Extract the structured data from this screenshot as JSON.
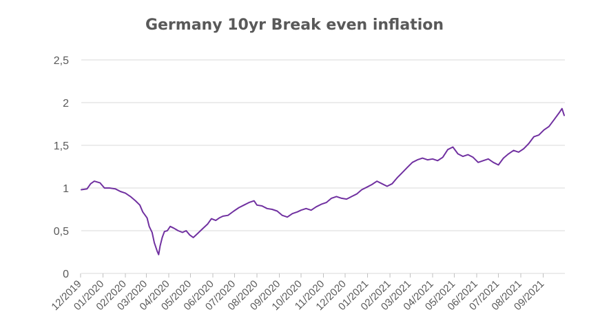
{
  "chart_data": {
    "type": "line",
    "title": "Germany 10yr Break even inflation",
    "xlabel": "",
    "ylabel": "",
    "ylim": [
      0,
      2.5
    ],
    "yticks": [
      0,
      0.5,
      1,
      1.5,
      2,
      2.5
    ],
    "ytick_labels": [
      "0",
      "0,5",
      "1",
      "1,5",
      "2",
      "2,5"
    ],
    "xlim": [
      "2019-12-02",
      "2021-10-01"
    ],
    "xtick_dates": [
      "2019-12-01",
      "2020-01-01",
      "2020-02-01",
      "2020-03-01",
      "2020-04-01",
      "2020-05-01",
      "2020-06-01",
      "2020-07-01",
      "2020-08-01",
      "2020-09-01",
      "2020-10-01",
      "2020-11-01",
      "2020-12-01",
      "2021-01-01",
      "2021-02-01",
      "2021-03-01",
      "2021-04-01",
      "2021-05-01",
      "2021-06-01",
      "2021-07-01",
      "2021-08-01",
      "2021-09-01"
    ],
    "xtick_labels": [
      "12/2019",
      "01/2020",
      "02/2020",
      "03/2020",
      "04/2020",
      "05/2020",
      "06/2020",
      "07/2020",
      "08/2020",
      "09/2020",
      "10/2020",
      "11/2020",
      "12/2020",
      "01/2021",
      "02/2021",
      "03/2021",
      "04/2021",
      "05/2021",
      "06/2021",
      "07/2021",
      "08/2021",
      "09/2021"
    ],
    "grid": true,
    "legend": "none",
    "line_color": "#7030a0",
    "series": [
      {
        "x": [
          "2019-12-02",
          "2019-12-10",
          "2019-12-15",
          "2019-12-20",
          "2019-12-28",
          "2020-01-03",
          "2020-01-10",
          "2020-01-18",
          "2020-01-25",
          "2020-02-01",
          "2020-02-08",
          "2020-02-15",
          "2020-02-21",
          "2020-02-25",
          "2020-03-02",
          "2020-03-05",
          "2020-03-09",
          "2020-03-12",
          "2020-03-16",
          "2020-03-18",
          "2020-03-20",
          "2020-03-23",
          "2020-03-26",
          "2020-03-30",
          "2020-04-03",
          "2020-04-08",
          "2020-04-14",
          "2020-04-20",
          "2020-04-25",
          "2020-04-30",
          "2020-05-05",
          "2020-05-10",
          "2020-05-15",
          "2020-05-20",
          "2020-05-25",
          "2020-05-30",
          "2020-06-05",
          "2020-06-10",
          "2020-06-15",
          "2020-06-22",
          "2020-06-30",
          "2020-07-07",
          "2020-07-14",
          "2020-07-21",
          "2020-07-28",
          "2020-08-01",
          "2020-08-08",
          "2020-08-15",
          "2020-08-22",
          "2020-08-29",
          "2020-09-05",
          "2020-09-12",
          "2020-09-19",
          "2020-09-26",
          "2020-10-01",
          "2020-10-08",
          "2020-10-15",
          "2020-10-22",
          "2020-10-29",
          "2020-11-05",
          "2020-11-12",
          "2020-11-19",
          "2020-11-26",
          "2020-12-03",
          "2020-12-10",
          "2020-12-17",
          "2020-12-24",
          "2020-12-31",
          "2021-01-07",
          "2021-01-14",
          "2021-01-21",
          "2021-01-28",
          "2021-02-04",
          "2021-02-11",
          "2021-02-18",
          "2021-02-25",
          "2021-03-04",
          "2021-03-11",
          "2021-03-18",
          "2021-03-25",
          "2021-04-01",
          "2021-04-08",
          "2021-04-15",
          "2021-04-22",
          "2021-04-29",
          "2021-05-06",
          "2021-05-13",
          "2021-05-20",
          "2021-05-27",
          "2021-06-03",
          "2021-06-10",
          "2021-06-17",
          "2021-06-24",
          "2021-07-01",
          "2021-07-08",
          "2021-07-15",
          "2021-07-22",
          "2021-07-29",
          "2021-08-05",
          "2021-08-12",
          "2021-08-19",
          "2021-08-26",
          "2021-09-02",
          "2021-09-09",
          "2021-09-16",
          "2021-09-23",
          "2021-09-27",
          "2021-09-30"
        ],
        "values": [
          0.98,
          0.99,
          1.05,
          1.08,
          1.06,
          1.0,
          1.0,
          0.99,
          0.96,
          0.94,
          0.9,
          0.85,
          0.8,
          0.72,
          0.65,
          0.55,
          0.48,
          0.36,
          0.26,
          0.22,
          0.32,
          0.42,
          0.49,
          0.5,
          0.55,
          0.53,
          0.5,
          0.48,
          0.5,
          0.45,
          0.42,
          0.46,
          0.5,
          0.54,
          0.58,
          0.64,
          0.62,
          0.65,
          0.67,
          0.68,
          0.73,
          0.77,
          0.8,
          0.83,
          0.85,
          0.8,
          0.79,
          0.76,
          0.75,
          0.73,
          0.68,
          0.66,
          0.7,
          0.72,
          0.74,
          0.76,
          0.74,
          0.78,
          0.81,
          0.83,
          0.88,
          0.9,
          0.88,
          0.87,
          0.9,
          0.93,
          0.98,
          1.01,
          1.04,
          1.08,
          1.05,
          1.02,
          1.05,
          1.12,
          1.18,
          1.24,
          1.3,
          1.33,
          1.35,
          1.33,
          1.34,
          1.32,
          1.36,
          1.45,
          1.48,
          1.4,
          1.37,
          1.39,
          1.36,
          1.3,
          1.32,
          1.34,
          1.3,
          1.27,
          1.35,
          1.4,
          1.44,
          1.42,
          1.46,
          1.52,
          1.6,
          1.62,
          1.68,
          1.72,
          1.8,
          1.88,
          1.93,
          1.85
        ]
      }
    ]
  }
}
